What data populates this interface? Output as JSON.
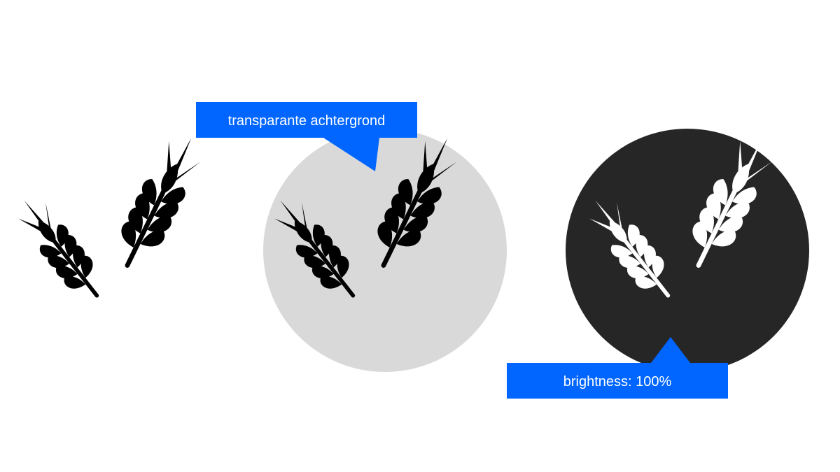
{
  "colors": {
    "background": "#ffffff",
    "callout": "#0066ff",
    "callout_text": "#ffffff",
    "light_circle": "#d9d9d9",
    "dark_circle": "#262626",
    "wheat_dark": "#000000",
    "wheat_light": "#ffffff"
  },
  "icons": {
    "primary": "wheat-icon"
  },
  "callouts": [
    {
      "text": "transparante achtergrond"
    },
    {
      "text": "brightness: 100%"
    }
  ]
}
